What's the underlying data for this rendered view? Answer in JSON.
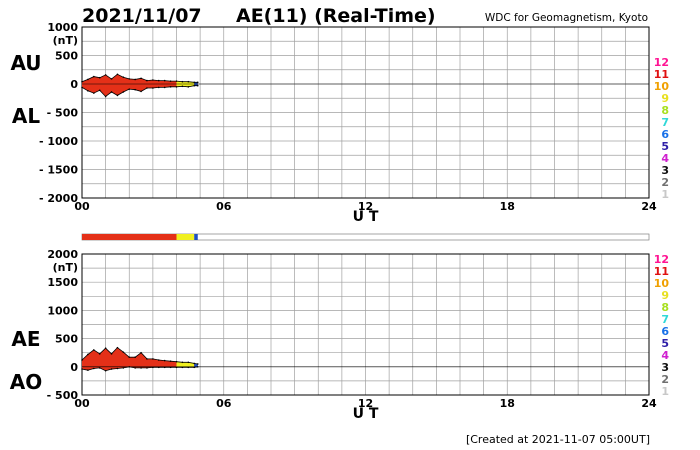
{
  "header": {
    "date": "2021/11/07",
    "title": "AE(11) (Real-Time)",
    "source": "WDC for Geomagnetism, Kyoto"
  },
  "footer": {
    "created": "[Created at 2021-11-07 05:00UT]"
  },
  "colors": {
    "grid": "#a0a0a0",
    "frame": "#000000",
    "fill_main": "#e43018",
    "fill_recent": "#f0f020",
    "fill_latest": "#2050c0"
  },
  "level_legend": [
    {
      "label": "12",
      "color": "#ff1493"
    },
    {
      "label": "11",
      "color": "#e01010"
    },
    {
      "label": "10",
      "color": "#f0a000"
    },
    {
      "label": "9",
      "color": "#e8e020"
    },
    {
      "label": "8",
      "color": "#a8e020"
    },
    {
      "label": "7",
      "color": "#30d8d8"
    },
    {
      "label": "6",
      "color": "#1870e8"
    },
    {
      "label": "5",
      "color": "#3020a8"
    },
    {
      "label": "4",
      "color": "#d020d0"
    },
    {
      "label": "3",
      "color": "#101010"
    },
    {
      "label": "2",
      "color": "#707070"
    },
    {
      "label": "1",
      "color": "#c8c8c8"
    }
  ],
  "chart_data": [
    {
      "type": "area",
      "panel": "AU-AL",
      "ylabel": "(nT)",
      "xlabel": "U T",
      "series_labels": [
        "AU",
        "AL"
      ],
      "xlim": [
        0,
        24
      ],
      "ylim": [
        -2000,
        1000
      ],
      "x_ticks": [
        "00",
        "06",
        "12",
        "18",
        "24"
      ],
      "y_ticks": [
        {
          "value": 1000,
          "label": "1000"
        },
        {
          "value": 500,
          "label": "500"
        },
        {
          "value": 0,
          "label": "0"
        },
        {
          "value": -500,
          "label": "- 500"
        },
        {
          "value": -1000,
          "label": "- 1000"
        },
        {
          "value": -1500,
          "label": "- 1500"
        },
        {
          "value": -2000,
          "label": "- 2000"
        }
      ],
      "grid": true,
      "x": [
        0,
        0.25,
        0.5,
        0.75,
        1.0,
        1.25,
        1.5,
        1.75,
        2.0,
        2.25,
        2.5,
        2.75,
        3.0,
        3.25,
        3.5,
        3.75,
        4.0,
        4.25,
        4.5,
        4.75,
        4.9
      ],
      "series": [
        {
          "name": "AU",
          "values": [
            40,
            80,
            130,
            110,
            160,
            90,
            170,
            120,
            90,
            80,
            100,
            60,
            70,
            60,
            60,
            50,
            50,
            40,
            40,
            30,
            30
          ]
        },
        {
          "name": "AL",
          "values": [
            -60,
            -120,
            -160,
            -110,
            -220,
            -140,
            -200,
            -140,
            -90,
            -100,
            -130,
            -70,
            -70,
            -60,
            -60,
            -50,
            -50,
            -40,
            -50,
            -30,
            -30
          ]
        }
      ]
    },
    {
      "type": "area",
      "panel": "AE-AO",
      "ylabel": "(nT)",
      "xlabel": "U T",
      "series_labels": [
        "AE",
        "AO"
      ],
      "xlim": [
        0,
        24
      ],
      "ylim": [
        -500,
        2000
      ],
      "x_ticks": [
        "00",
        "06",
        "12",
        "18",
        "24"
      ],
      "y_ticks": [
        {
          "value": 2000,
          "label": "2000"
        },
        {
          "value": 1500,
          "label": "1500"
        },
        {
          "value": 1000,
          "label": "1000"
        },
        {
          "value": 500,
          "label": "500"
        },
        {
          "value": 0,
          "label": "0"
        },
        {
          "value": -500,
          "label": "- 500"
        }
      ],
      "grid": true,
      "x": [
        0,
        0.25,
        0.5,
        0.75,
        1.0,
        1.25,
        1.5,
        1.75,
        2.0,
        2.25,
        2.5,
        2.75,
        3.0,
        3.25,
        3.5,
        3.75,
        4.0,
        4.25,
        4.5,
        4.75,
        4.9
      ],
      "series": [
        {
          "name": "AE",
          "values": [
            120,
            220,
            300,
            230,
            330,
            230,
            340,
            260,
            170,
            170,
            250,
            140,
            140,
            120,
            110,
            100,
            90,
            80,
            80,
            60,
            50
          ]
        },
        {
          "name": "AO",
          "values": [
            -40,
            -60,
            -30,
            -20,
            -70,
            -40,
            -30,
            -20,
            0,
            -20,
            -20,
            -20,
            -10,
            -10,
            -10,
            -10,
            -10,
            -10,
            -10,
            -10,
            0
          ]
        }
      ]
    }
  ],
  "activity_bar": {
    "segments": [
      {
        "from": 0,
        "to": 4.0,
        "color": "#e43018"
      },
      {
        "from": 4.0,
        "to": 4.75,
        "color": "#f0f020"
      },
      {
        "from": 4.75,
        "to": 4.9,
        "color": "#2050c0"
      }
    ]
  }
}
